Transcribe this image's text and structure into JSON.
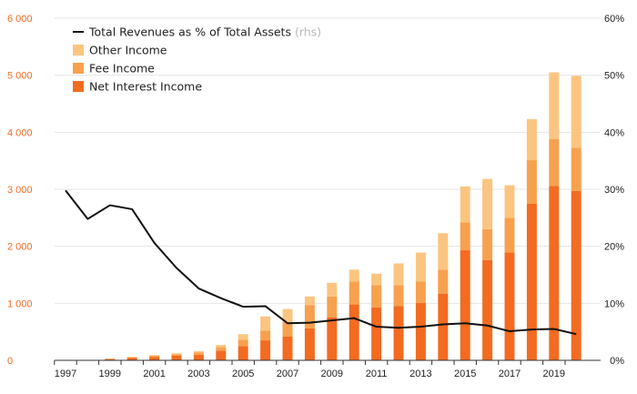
{
  "chart_data": {
    "type": "bar",
    "stacked": true,
    "x": [
      "1997",
      "1998",
      "1999",
      "2000",
      "2001",
      "2002",
      "2003",
      "2004",
      "2005",
      "2006",
      "2007",
      "2008",
      "2009",
      "2010",
      "2011",
      "2012",
      "2013",
      "2014",
      "2015",
      "2016",
      "2017",
      "2018",
      "2019",
      "2020"
    ],
    "x_tick_labels": [
      "1997",
      "1999",
      "2001",
      "2003",
      "2005",
      "2007",
      "2009",
      "2011",
      "2013",
      "2015",
      "2017",
      "2019"
    ],
    "y_left": {
      "ylim": [
        0,
        6000
      ],
      "ticks": [
        "0",
        "1 000",
        "2 000",
        "3 000",
        "4 000",
        "5 000",
        "6 000"
      ],
      "tick_color": "#f26b21"
    },
    "y_right": {
      "ylim": [
        0,
        60
      ],
      "ticks": [
        "0%",
        "10%",
        "20%",
        "30%",
        "40%",
        "50%",
        "60%"
      ]
    },
    "grid": true,
    "legend_position": "top-left",
    "series": [
      {
        "name": "Net Interest Income",
        "kind": "bar",
        "axis": "left",
        "color": "#f26b21",
        "values": [
          0,
          0,
          20,
          40,
          60,
          80,
          100,
          170,
          250,
          350,
          420,
          560,
          750,
          980,
          930,
          950,
          1010,
          1170,
          1930,
          1760,
          1890,
          2750,
          3060,
          2970
        ]
      },
      {
        "name": "Fee Income",
        "kind": "bar",
        "axis": "left",
        "color": "#f7a14e",
        "values": [
          0,
          0,
          10,
          15,
          20,
          25,
          40,
          60,
          110,
          170,
          250,
          410,
          370,
          400,
          390,
          370,
          370,
          420,
          490,
          540,
          610,
          760,
          820,
          760
        ]
      },
      {
        "name": "Other Income",
        "kind": "bar",
        "axis": "left",
        "color": "#fbc580",
        "values": [
          0,
          0,
          5,
          5,
          10,
          20,
          20,
          40,
          100,
          250,
          230,
          150,
          240,
          210,
          200,
          380,
          510,
          640,
          630,
          880,
          570,
          720,
          1170,
          1260
        ]
      },
      {
        "name": "Total Revenues as % of Total Assets",
        "name_note": "(rhs)",
        "kind": "line",
        "axis": "right",
        "color": "#111111",
        "values": [
          29.8,
          24.8,
          27.2,
          26.5,
          20.6,
          16.2,
          12.6,
          10.9,
          9.4,
          9.5,
          6.5,
          6.6,
          7.0,
          7.4,
          5.9,
          5.7,
          5.9,
          6.3,
          6.5,
          6.1,
          5.1,
          5.4,
          5.5,
          4.6
        ]
      }
    ]
  }
}
